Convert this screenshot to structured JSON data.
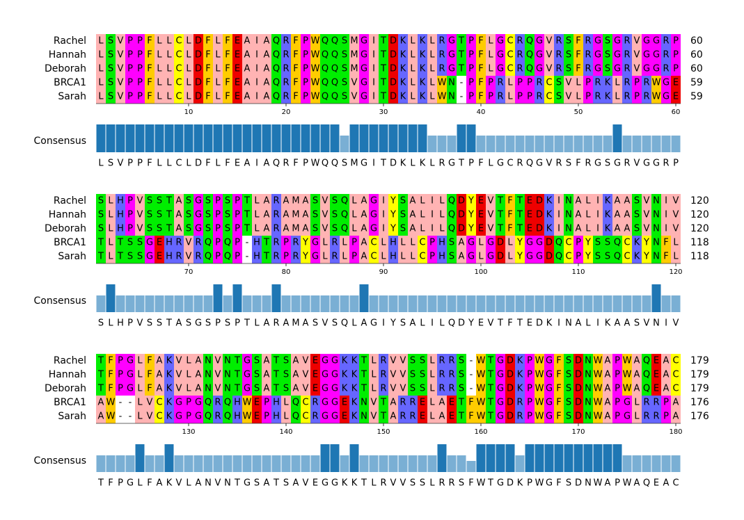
{
  "figure": {
    "consensus_label": "Consensus",
    "colors": {
      "A": "#ffb3b3",
      "V": "#ffb3b3",
      "L": "#ffb3b3",
      "I": "#ffb3b3",
      "M": "#ffb3b3",
      "F": "#ffcc00",
      "W": "#ffcc00",
      "Y": "#ffff00",
      "C": "#ffff00",
      "P": "#ff00ff",
      "G": "#ff00ff",
      "S": "#00ee00",
      "T": "#00ee00",
      "N": "#00ee00",
      "Q": "#00ee00",
      "D": "#ee0000",
      "E": "#ee0000",
      "K": "#6666ff",
      "R": "#6666ff",
      "H": "#6666ff",
      "-": "#ffffff",
      "conserved_bar": "#1f77b4",
      "variable_bar": "#7aafd4"
    }
  },
  "chart_data": {
    "type": "multiple-sequence-alignment",
    "sequence_names": [
      "Rachel",
      "Hannah",
      "Deborah",
      "BRCA1",
      "Sarah"
    ],
    "blocks": [
      {
        "start": 1,
        "ticks": [
          10,
          20,
          30,
          40,
          50,
          60
        ],
        "rows": [
          {
            "name": "Rachel",
            "seq": "LSVPPFLLCLDFLFEAIAQRFPWQQSMGITDKLKLRGTPFLGCRQGVRSFRGSGRVGGRP",
            "end": 60
          },
          {
            "name": "Hannah",
            "seq": "LSVPPFLLCLDFLFEAIAQRFPWQQSMGITDKLKLRGTPFLGCRQGVRSFRGSGRVGGRP",
            "end": 60
          },
          {
            "name": "Deborah",
            "seq": "LSVPPFLLCLDFLFEAIAQRFPWQQSMGITDKLKLRGTPFLGCRQGVRSFRGSGRVGGRP",
            "end": 60
          },
          {
            "name": "BRCA1",
            "seq": "LSVPPFLLCLDFLFEAIAQRFPWQQSVGITDKLKLWN-PFPRLPPRCSVLPRKLRPRWGE",
            "end": 59
          },
          {
            "name": "Sarah",
            "seq": "LSVPPFLLCLDFLFEAIAQRFPWQQSVGITDKLKLWN-PFPRLPPRCSVLPRKLRPRWGE",
            "end": 59
          }
        ],
        "consensus": "LSVPPFLLCLDFLFEAIAQRFPWQQSMGITDKLKLRGTPFLGCRQGVRSFRGSGRVGGRP",
        "conservation": [
          1,
          1,
          1,
          1,
          1,
          1,
          1,
          1,
          1,
          1,
          1,
          1,
          1,
          1,
          1,
          1,
          1,
          1,
          1,
          1,
          1,
          1,
          1,
          1,
          1,
          0.6,
          1,
          1,
          1,
          1,
          1,
          1,
          1,
          1,
          0.6,
          0.6,
          0.6,
          1,
          1,
          0.6,
          0.6,
          0.6,
          0.6,
          0.6,
          0.6,
          0.6,
          0.6,
          0.6,
          0.6,
          0.6,
          0.6,
          0.6,
          0.6,
          1,
          0.6,
          0.6,
          0.6,
          0.6,
          0.6,
          0.6
        ]
      },
      {
        "start": 61,
        "ticks": [
          70,
          80,
          90,
          100,
          110,
          120
        ],
        "rows": [
          {
            "name": "Rachel",
            "seq": "SLHPVSSTASGSPSPTLARAMASVSQLAGIYSALILQDYEVTFTEDKINALIKAASVNIV",
            "end": 120
          },
          {
            "name": "Hannah",
            "seq": "SLHPVSSTASGSPSPTLARAMASVSQLAGIYSALILQDYEVTFTEDKINALIKAASVNIV",
            "end": 120
          },
          {
            "name": "Deborah",
            "seq": "SLHPVSSTASGSPSPTLARAMASVSQLAGIYSALILQDYEVTFTEDKINALIKAASVNIV",
            "end": 120
          },
          {
            "name": "BRCA1",
            "seq": "TLTSSGEHRVRQPQP-HTRPRYGLRLPACLHLLCPHSAGLGDLYGGDQCPYSSQCKYNFL",
            "end": 118
          },
          {
            "name": "Sarah",
            "seq": "TLTSSGEHRVRQPQP-HTRPRYGLRLPACLHLLCPHSAGLGDLYGGDQCPYSSQCKYNFL",
            "end": 118
          }
        ],
        "consensus": "SLHPVSSTASGSPSPTLARAMASVSQLAGIYSALILQDYEVTFTEDKINALIKAASVNIV",
        "conservation": [
          0.6,
          1,
          0.6,
          0.6,
          0.6,
          0.6,
          0.6,
          0.6,
          0.6,
          0.6,
          0.6,
          0.6,
          1,
          0.6,
          1,
          0.6,
          0.6,
          0.6,
          1,
          0.6,
          0.6,
          0.6,
          0.6,
          0.6,
          0.6,
          0.6,
          0.6,
          1,
          0.6,
          0.6,
          0.6,
          0.6,
          0.6,
          0.6,
          0.6,
          0.6,
          0.6,
          0.6,
          0.6,
          0.6,
          0.6,
          0.6,
          0.6,
          0.6,
          0.6,
          0.6,
          0.6,
          0.6,
          0.6,
          0.6,
          0.6,
          0.6,
          0.6,
          0.6,
          0.6,
          0.6,
          0.6,
          1,
          0.6,
          0.6
        ]
      },
      {
        "start": 121,
        "ticks": [
          130,
          140,
          150,
          160,
          170,
          180
        ],
        "rows": [
          {
            "name": "Rachel",
            "seq": "TFPGLFAKVLANVNTGSATSAVEGGKKTLRVVSSLRRS-WTGDKPWGFSDNWAPWAQEAC",
            "end": 179
          },
          {
            "name": "Hannah",
            "seq": "TFPGLFAKVLANVNTGSATSAVEGGKKTLRVVSSLRRS-WTGDKPWGFSDNWAPWAQEAC",
            "end": 179
          },
          {
            "name": "Deborah",
            "seq": "TFPGLFAKVLANVNTGSATSAVEGGKKTLRVVSSLRRS-WTGDKPWGFSDNWAPWAQEAC",
            "end": 179
          },
          {
            "name": "BRCA1",
            "seq": "AW--LVCKGPGQRQHWEPHLQCRGGEKNVTARRELAETFWTGDRPWGFSDNWAPGLRRPA",
            "end": 176
          },
          {
            "name": "Sarah",
            "seq": "AW--LVCKGPGQRQHWEPHLQCRGGEKNVTARRELAETFWTGDRPWGFSDNWAPGLRRPA",
            "end": 176
          }
        ],
        "consensus": "TFPGLFAKVLANVNTGSATSAVEGGKKTLRVVSSLRRSFWTGDKPWGFSDNWAPWAQEAC",
        "conservation": [
          0.6,
          0.6,
          0.6,
          0.6,
          1,
          0.6,
          0.6,
          1,
          0.6,
          0.6,
          0.6,
          0.6,
          0.6,
          0.6,
          0.6,
          0.6,
          0.6,
          0.6,
          0.6,
          0.6,
          0.6,
          0.6,
          0.6,
          1,
          1,
          0.6,
          1,
          0.6,
          0.6,
          0.6,
          0.6,
          0.6,
          0.6,
          0.6,
          0.6,
          1,
          0.6,
          0.6,
          0.4,
          1,
          1,
          1,
          1,
          0.6,
          1,
          1,
          1,
          1,
          1,
          1,
          1,
          1,
          1,
          1,
          0.6,
          0.6,
          0.6,
          0.6,
          0.6,
          0.6
        ]
      }
    ]
  }
}
